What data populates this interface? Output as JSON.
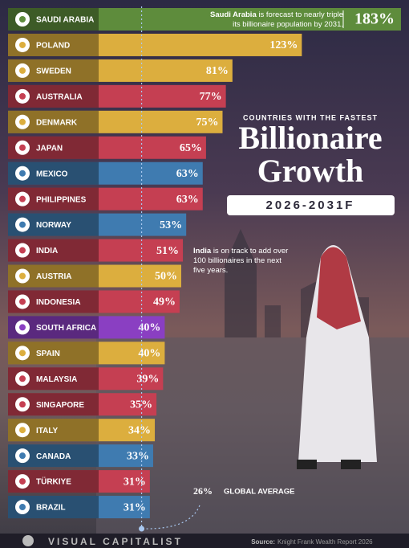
{
  "chart_data": {
    "type": "bar",
    "kicker": "COUNTRIES WITH THE FASTEST",
    "title_lines": [
      "Billionaire",
      "Growth"
    ],
    "subtitle": "2026-2031F",
    "categories": [
      "SAUDI ARABIA",
      "POLAND",
      "SWEDEN",
      "AUSTRALIA",
      "DENMARK",
      "JAPAN",
      "MEXICO",
      "PHILIPPINES",
      "NORWAY",
      "INDIA",
      "AUSTRIA",
      "INDONESIA",
      "SOUTH AFRICA",
      "SPAIN",
      "MALAYSIA",
      "SINGAPORE",
      "ITALY",
      "CANADA",
      "TÜRKIYE",
      "BRAZIL"
    ],
    "values": [
      183,
      123,
      81,
      77,
      75,
      65,
      63,
      63,
      53,
      51,
      50,
      49,
      40,
      40,
      39,
      35,
      34,
      33,
      31,
      31
    ],
    "value_labels": [
      "183%",
      "123%",
      "81%",
      "77%",
      "75%",
      "65%",
      "63%",
      "63%",
      "53%",
      "51%",
      "50%",
      "49%",
      "40%",
      "40%",
      "39%",
      "35%",
      "34%",
      "33%",
      "31%",
      "31%"
    ],
    "colors": [
      "#5e8c3c",
      "#dcae3e",
      "#dcae3e",
      "#c53f52",
      "#dcae3e",
      "#c53f52",
      "#3f7bb0",
      "#c53f52",
      "#3f7bb0",
      "#c53f52",
      "#dcae3e",
      "#c53f52",
      "#8a3fc2",
      "#dcae3e",
      "#c53f52",
      "#c53f52",
      "#dcae3e",
      "#3f7bb0",
      "#c53f52",
      "#3f7bb0"
    ],
    "annotations": [
      {
        "bold": "Saudi Arabia",
        "text": "is forecast to nearly triple its billionaire population by 2031."
      },
      {
        "bold": "India",
        "text": "is on track to add over 100 billionaires in the next five years."
      }
    ],
    "reference": {
      "value": 26,
      "value_label": "26%",
      "label": "GLOBAL AVERAGE"
    }
  },
  "footer": {
    "brand": "VISUAL CAPITALIST",
    "source_label": "Source:",
    "source": "Knight Frank Wealth Report 2026"
  }
}
